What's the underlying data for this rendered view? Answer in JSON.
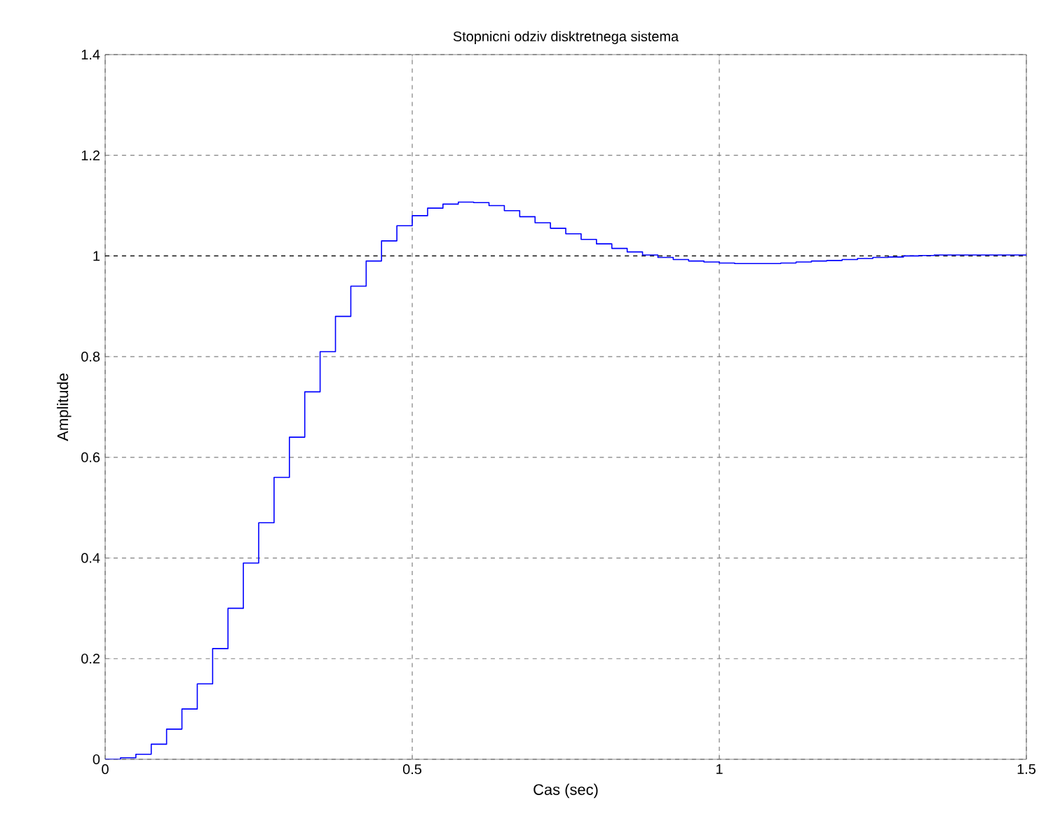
{
  "chart_data": {
    "type": "step",
    "title": "Stopnicni odziv disktretnega sistema",
    "xlabel": "Cas (sec)",
    "ylabel": "Amplitude",
    "x": [
      0,
      0.025,
      0.05,
      0.075,
      0.1,
      0.125,
      0.15,
      0.175,
      0.2,
      0.225,
      0.25,
      0.275,
      0.3,
      0.325,
      0.35,
      0.375,
      0.4,
      0.425,
      0.45,
      0.475,
      0.5,
      0.525,
      0.55,
      0.575,
      0.6,
      0.625,
      0.65,
      0.675,
      0.7,
      0.725,
      0.75,
      0.775,
      0.8,
      0.825,
      0.85,
      0.875,
      0.9,
      0.925,
      0.95,
      0.975,
      1.0,
      1.025,
      1.05,
      1.075,
      1.1,
      1.125,
      1.15,
      1.175,
      1.2,
      1.225,
      1.25,
      1.275,
      1.3,
      1.325,
      1.35,
      1.5
    ],
    "series": [
      {
        "color": "#0000ff",
        "values": [
          0,
          0.003,
          0.01,
          0.03,
          0.06,
          0.1,
          0.15,
          0.22,
          0.3,
          0.39,
          0.47,
          0.56,
          0.64,
          0.73,
          0.81,
          0.88,
          0.94,
          0.99,
          1.03,
          1.06,
          1.08,
          1.095,
          1.103,
          1.107,
          1.106,
          1.1,
          1.09,
          1.078,
          1.066,
          1.055,
          1.044,
          1.033,
          1.024,
          1.015,
          1.008,
          1.002,
          0.997,
          0.993,
          0.99,
          0.988,
          0.986,
          0.985,
          0.985,
          0.985,
          0.986,
          0.988,
          0.99,
          0.991,
          0.993,
          0.995,
          0.997,
          0.998,
          1.0,
          1.001,
          1.002,
          1.002
        ]
      }
    ],
    "xlim": [
      0,
      1.5
    ],
    "ylim": [
      0,
      1.4
    ],
    "xticks": [
      0,
      0.5,
      1,
      1.5
    ],
    "yticks": [
      0,
      0.2,
      0.4,
      0.6,
      0.8,
      1,
      1.2,
      1.4
    ],
    "grid": true,
    "marker": "none",
    "line_style": "solid",
    "ref_lines": [
      {
        "axis": "y",
        "value": 1,
        "color": "#000000",
        "line_style": "dashed"
      }
    ]
  }
}
